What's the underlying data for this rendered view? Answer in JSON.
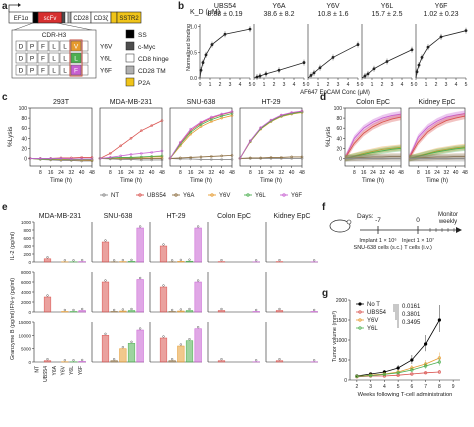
{
  "panel_labels": {
    "a": "a",
    "b": "b",
    "c": "c",
    "d": "d",
    "e": "e",
    "f": "f",
    "g": "g"
  },
  "colors": {
    "NT": "#8a8a8a",
    "UBS54": "#d9534f",
    "Y6A": "#8c6d3f",
    "Y6V": "#e69a2e",
    "Y6L": "#4caf50",
    "Y6F": "#c75fd1",
    "red_box": "#c0392b",
    "scfv": "#d62f2f",
    "sstr2": "#f0c419",
    "p2a": "#f0c419",
    "cd8tm": "#b0b0b0",
    "cmyc": "#4d4d4d",
    "ss": "#000000"
  },
  "panel_a": {
    "boxes": [
      "EF1α",
      "",
      "scFv",
      "CD28",
      "CD3ζ",
      "",
      "SSTR2"
    ],
    "cdr_title": "CDR-H3",
    "cdr_rows": [
      {
        "seq": [
          "D",
          "P",
          "F",
          "L",
          "L"
        ],
        "res": "V",
        "label": "Y6V",
        "color": "#e69a2e"
      },
      {
        "seq": [
          "D",
          "P",
          "F",
          "L",
          "L"
        ],
        "res": "L",
        "label": "Y6L",
        "color": "#4caf50"
      },
      {
        "seq": [
          "D",
          "P",
          "F",
          "L",
          "L"
        ],
        "res": "F",
        "label": "Y6F",
        "color": "#c75fd1"
      }
    ],
    "legend": [
      {
        "label": "SS",
        "color": "#000000"
      },
      {
        "label": "c-Myc",
        "color": "#4d4d4d"
      },
      {
        "label": "CD8 hinge",
        "color": "#ffffff"
      },
      {
        "label": "CD28 TM",
        "color": "#b0b0b0"
      },
      {
        "label": "P2A",
        "color": "#f0c419"
      }
    ]
  },
  "panel_b": {
    "kd_label": "K_D (μM)",
    "ylabel": "Normalized binding",
    "xlabel": "AF647 EpCAM Conc (μM)",
    "chart_data": {
      "type": "scatter",
      "x_ticks": [
        0,
        1,
        2,
        3,
        4,
        5
      ],
      "y_ticks": [
        0,
        0.5,
        1.0
      ],
      "panels": [
        {
          "name": "UBS54",
          "kd": "0.88 ± 0.19",
          "x": [
            0.1,
            0.3,
            0.6,
            1.2,
            2.5,
            5
          ],
          "y": [
            0.15,
            0.3,
            0.45,
            0.65,
            0.85,
            0.95
          ]
        },
        {
          "name": "Y6A",
          "kd": "38.6 ± 8.2",
          "x": [
            0.3,
            0.6,
            1.2,
            2.5,
            5
          ],
          "y": [
            0.02,
            0.04,
            0.08,
            0.15,
            0.3
          ]
        },
        {
          "name": "Y6V",
          "kd": "10.8 ± 1.6",
          "x": [
            0.3,
            0.6,
            1.2,
            2.5,
            5
          ],
          "y": [
            0.05,
            0.1,
            0.2,
            0.4,
            0.65
          ]
        },
        {
          "name": "Y6L",
          "kd": "15.7 ± 2.5",
          "x": [
            0.3,
            0.6,
            1.2,
            2.5,
            5
          ],
          "y": [
            0.04,
            0.08,
            0.18,
            0.32,
            0.55
          ]
        },
        {
          "name": "Y6F",
          "kd": "1.02 ± 0.23",
          "x": [
            0.1,
            0.3,
            0.6,
            1.2,
            2.5,
            5
          ],
          "y": [
            0.12,
            0.25,
            0.4,
            0.6,
            0.8,
            0.92
          ]
        }
      ]
    }
  },
  "panel_c": {
    "ylabel": "%Lysis",
    "xlabel": "Time (h)",
    "legend": [
      "NT",
      "UBS54",
      "Y6A",
      "Y6V",
      "Y6L",
      "Y6F"
    ],
    "chart_data": {
      "type": "line",
      "x": [
        0,
        8,
        16,
        24,
        32,
        40,
        48
      ],
      "x_ticks": [
        8,
        16,
        24,
        32,
        40,
        48
      ],
      "y_ticks": [
        0,
        20,
        40,
        60,
        80,
        100
      ],
      "ylim": [
        -15,
        100
      ],
      "panels": [
        {
          "name": "293T",
          "series": [
            {
              "name": "NT",
              "values": [
                0,
                -2,
                -3,
                -4,
                -4,
                -5,
                -5
              ]
            },
            {
              "name": "UBS54",
              "values": [
                0,
                0,
                0,
                1,
                1,
                2,
                2
              ]
            },
            {
              "name": "Y6A",
              "values": [
                0,
                -1,
                -2,
                -2,
                -3,
                -3,
                -4
              ]
            },
            {
              "name": "Y6V",
              "values": [
                0,
                -1,
                -1,
                -2,
                -2,
                -3,
                -3
              ]
            },
            {
              "name": "Y6L",
              "values": [
                0,
                -1,
                -1,
                -1,
                -2,
                -2,
                -2
              ]
            },
            {
              "name": "Y6F",
              "values": [
                0,
                0,
                0,
                0,
                -1,
                -1,
                -1
              ]
            }
          ]
        },
        {
          "name": "MDA-MB-231",
          "series": [
            {
              "name": "NT",
              "values": [
                0,
                -1,
                -2,
                -2,
                -3,
                -3,
                -3
              ]
            },
            {
              "name": "UBS54",
              "values": [
                0,
                10,
                25,
                40,
                55,
                65,
                75
              ]
            },
            {
              "name": "Y6A",
              "values": [
                0,
                0,
                0,
                0,
                0,
                0,
                0
              ]
            },
            {
              "name": "Y6V",
              "values": [
                0,
                1,
                1,
                2,
                2,
                3,
                3
              ]
            },
            {
              "name": "Y6L",
              "values": [
                0,
                1,
                2,
                2,
                3,
                4,
                5
              ]
            },
            {
              "name": "Y6F",
              "values": [
                0,
                2,
                5,
                8,
                10,
                12,
                15
              ]
            }
          ]
        },
        {
          "name": "SNU-638",
          "series": [
            {
              "name": "NT",
              "values": [
                0,
                -1,
                -1,
                -2,
                -2,
                -2,
                -2
              ]
            },
            {
              "name": "UBS54",
              "values": [
                0,
                30,
                55,
                70,
                80,
                87,
                92
              ]
            },
            {
              "name": "Y6A",
              "values": [
                0,
                1,
                2,
                3,
                4,
                5,
                6
              ]
            },
            {
              "name": "Y6V",
              "values": [
                0,
                25,
                48,
                63,
                73,
                80,
                85
              ]
            },
            {
              "name": "Y6L",
              "values": [
                0,
                28,
                52,
                67,
                77,
                84,
                89
              ]
            },
            {
              "name": "Y6F",
              "values": [
                0,
                32,
                58,
                72,
                82,
                88,
                93
              ]
            }
          ]
        },
        {
          "name": "HT-29",
          "series": [
            {
              "name": "NT",
              "values": [
                0,
                0,
                0,
                0,
                0,
                0,
                0
              ]
            },
            {
              "name": "UBS54",
              "values": [
                0,
                35,
                60,
                75,
                85,
                90,
                93
              ]
            },
            {
              "name": "Y6A",
              "values": [
                0,
                1,
                1,
                2,
                2,
                3,
                3
              ]
            },
            {
              "name": "Y6V",
              "values": [
                0,
                33,
                58,
                73,
                83,
                88,
                91
              ]
            },
            {
              "name": "Y6L",
              "values": [
                0,
                34,
                59,
                74,
                84,
                89,
                92
              ]
            },
            {
              "name": "Y6F",
              "values": [
                0,
                35,
                61,
                76,
                86,
                91,
                94
              ]
            }
          ]
        }
      ]
    }
  },
  "panel_d": {
    "ylabel": "%Lysis",
    "xlabel": "Time (h)",
    "chart_data": {
      "type": "area",
      "x": [
        0,
        8,
        16,
        24,
        32,
        40,
        48
      ],
      "x_ticks": [
        8,
        16,
        24,
        32,
        40,
        48
      ],
      "y_ticks": [
        0,
        20,
        40,
        60,
        80,
        100
      ],
      "ylim": [
        -15,
        100
      ],
      "panels": [
        {
          "name": "Colon EpC",
          "series": [
            {
              "name": "Y6F",
              "values": [
                0,
                40,
                60,
                72,
                80,
                85,
                88
              ]
            },
            {
              "name": "UBS54",
              "values": [
                0,
                30,
                50,
                63,
                72,
                78,
                82
              ]
            },
            {
              "name": "Y6V",
              "values": [
                0,
                5,
                10,
                14,
                18,
                20,
                22
              ]
            },
            {
              "name": "Y6L",
              "values": [
                0,
                4,
                8,
                12,
                15,
                18,
                20
              ]
            },
            {
              "name": "Y6A",
              "values": [
                0,
                1,
                2,
                3,
                3,
                4,
                4
              ]
            },
            {
              "name": "NT",
              "values": [
                0,
                0,
                0,
                0,
                0,
                0,
                0
              ]
            }
          ]
        },
        {
          "name": "Kidney EpC",
          "series": [
            {
              "name": "Y6F",
              "values": [
                0,
                42,
                62,
                74,
                82,
                86,
                89
              ]
            },
            {
              "name": "UBS54",
              "values": [
                0,
                32,
                53,
                66,
                75,
                80,
                84
              ]
            },
            {
              "name": "Y6V",
              "values": [
                0,
                5,
                10,
                15,
                18,
                21,
                23
              ]
            },
            {
              "name": "Y6L",
              "values": [
                0,
                4,
                9,
                13,
                16,
                19,
                21
              ]
            },
            {
              "name": "Y6A",
              "values": [
                0,
                1,
                2,
                3,
                3,
                4,
                4
              ]
            },
            {
              "name": "NT",
              "values": [
                0,
                0,
                0,
                0,
                0,
                0,
                0
              ]
            }
          ]
        }
      ]
    }
  },
  "panel_e": {
    "columns": [
      "MDA-MB-231",
      "SNU-638",
      "HT-29",
      "Colon EpC",
      "Kidney EpC"
    ],
    "groups": [
      "NT",
      "UBS54",
      "Y6A",
      "Y6V",
      "Y6L",
      "Y6F"
    ],
    "chart_data": {
      "type": "bar",
      "rows": [
        {
          "ylabel": "IL-2 (pg/ml)",
          "y_ticks": [
            0,
            200,
            400,
            600,
            800,
            1000
          ],
          "ymax": 1000,
          "values": [
            [
              0,
              80,
              0,
              5,
              5,
              10
            ],
            [
              0,
              500,
              5,
              10,
              15,
              850
            ],
            [
              0,
              400,
              5,
              15,
              20,
              850
            ],
            [
              0,
              10,
              0,
              0,
              0,
              5
            ],
            [
              0,
              10,
              0,
              0,
              0,
              5
            ]
          ]
        },
        {
          "ylabel": "IFN-γ (pg/ml)",
          "y_ticks": [
            0,
            2000,
            4000,
            6000,
            8000
          ],
          "ymax": 8000,
          "values": [
            [
              0,
              3000,
              0,
              100,
              100,
              300
            ],
            [
              0,
              6000,
              100,
              200,
              300,
              6500
            ],
            [
              0,
              5000,
              100,
              200,
              300,
              6000
            ],
            [
              0,
              300,
              0,
              0,
              0,
              100
            ],
            [
              0,
              300,
              0,
              0,
              0,
              100
            ]
          ]
        },
        {
          "ylabel": "Granzyme B (pg/ml)",
          "y_ticks": [
            0,
            5000,
            10000,
            15000
          ],
          "ymax": 15000,
          "values": [
            [
              0,
              500,
              0,
              100,
              100,
              200
            ],
            [
              0,
              10000,
              500,
              5000,
              7000,
              12000
            ],
            [
              0,
              9000,
              500,
              6000,
              8000,
              12500
            ],
            [
              0,
              500,
              0,
              0,
              0,
              100
            ],
            [
              0,
              500,
              0,
              0,
              0,
              100
            ]
          ]
        }
      ]
    }
  },
  "panel_f": {
    "days_label": "Days:",
    "timeline": [
      {
        "day": "-7",
        "text": "Implant 1 × 10⁶ SNU-638 cells (s.c.)"
      },
      {
        "day": "0",
        "text": "Inject 1 × 10⁷ T cells (i.v.)"
      }
    ],
    "monitor": "Monitor weekly"
  },
  "panel_g": {
    "ylabel": "Tumor volume (mm³)",
    "xlabel": "Weeks following T-cell administration",
    "pvalues": [
      "0.0161",
      "0.3801",
      "0.3495"
    ],
    "chart_data": {
      "type": "line",
      "x": [
        2,
        3,
        4,
        5,
        6,
        7,
        8
      ],
      "x_ticks": [
        2,
        3,
        4,
        5,
        6,
        7,
        8,
        9
      ],
      "y_ticks": [
        0,
        500,
        1000,
        1500,
        2000
      ],
      "ylim": [
        0,
        2000
      ],
      "series": [
        {
          "name": "No T",
          "values": [
            100,
            150,
            200,
            300,
            500,
            900,
            1500
          ]
        },
        {
          "name": "UBS54",
          "values": [
            80,
            100,
            100,
            120,
            150,
            180,
            200
          ]
        },
        {
          "name": "Y6V",
          "values": [
            90,
            120,
            150,
            200,
            300,
            400,
            550
          ]
        },
        {
          "name": "Y6L",
          "values": [
            90,
            110,
            140,
            180,
            250,
            350,
            450
          ]
        }
      ]
    }
  }
}
